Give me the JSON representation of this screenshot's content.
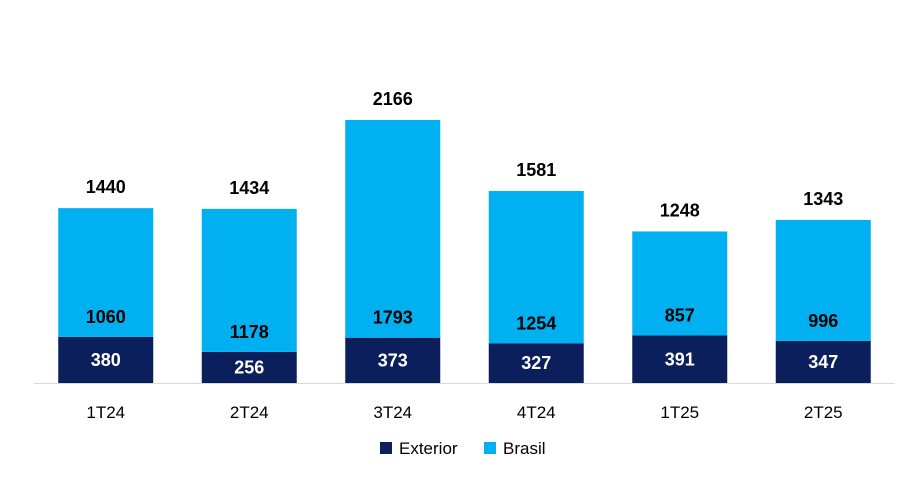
{
  "chart_data": {
    "type": "bar",
    "stacked": true,
    "categories": [
      "1T24",
      "2T24",
      "3T24",
      "4T24",
      "1T25",
      "2T25"
    ],
    "series": [
      {
        "name": "Exterior",
        "values": [
          380,
          256,
          373,
          327,
          391,
          347
        ],
        "color": "#0b1f5c"
      },
      {
        "name": "Brasil",
        "values": [
          1060,
          1178,
          1793,
          1254,
          857,
          996
        ],
        "color": "#00b0f0"
      }
    ],
    "totals": [
      1440,
      1434,
      2166,
      1581,
      1248,
      1343
    ],
    "ylim": [
      0,
      2800
    ],
    "grid": false,
    "legend": "bottom"
  }
}
